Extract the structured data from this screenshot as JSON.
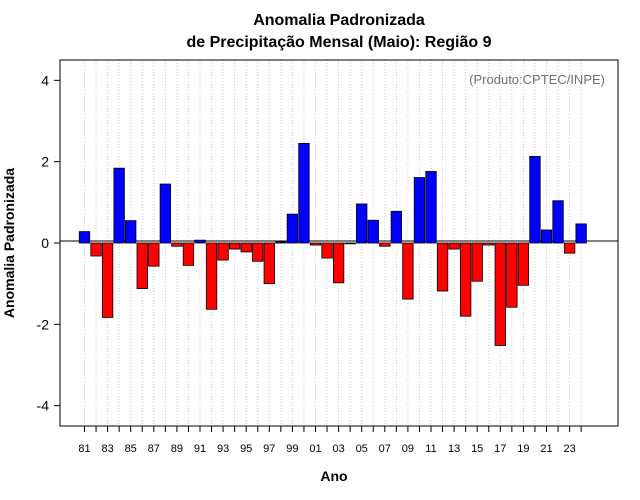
{
  "chart_data": {
    "type": "bar",
    "title_line1": "Anomalia Padronizada",
    "title_line2": "de Precipitação Mensal (Maio): Região 9",
    "xlabel": "Ano",
    "ylabel": "Anomalia Padronizada",
    "annotation": "(Produto:CPTEC/INPE)",
    "ylim": [
      -4.5,
      4.5
    ],
    "yticks": [
      "-4",
      "-2",
      "0",
      "2",
      "4"
    ],
    "xtick_labels": [
      "81",
      "83",
      "85",
      "87",
      "89",
      "91",
      "93",
      "95",
      "97",
      "99",
      "01",
      "03",
      "05",
      "07",
      "09",
      "11",
      "13",
      "15",
      "17",
      "19",
      "21",
      "23"
    ],
    "categories": [
      "1981",
      "1982",
      "1983",
      "1984",
      "1985",
      "1986",
      "1987",
      "1988",
      "1989",
      "1990",
      "1991",
      "1992",
      "1993",
      "1994",
      "1995",
      "1996",
      "1997",
      "1998",
      "1999",
      "2000",
      "2001",
      "2002",
      "2003",
      "2004",
      "2005",
      "2006",
      "2007",
      "2008",
      "2009",
      "2010",
      "2011",
      "2012",
      "2013",
      "2014",
      "2015",
      "2016",
      "2017",
      "2018",
      "2019",
      "2020",
      "2021",
      "2022",
      "2023",
      "2024"
    ],
    "values": [
      0.28,
      -0.32,
      -1.83,
      1.84,
      0.55,
      -1.12,
      -0.57,
      1.45,
      -0.08,
      -0.55,
      0.07,
      -1.63,
      -0.42,
      -0.15,
      -0.22,
      -0.45,
      -1.0,
      0.03,
      0.71,
      2.45,
      -0.05,
      -0.37,
      -0.98,
      0.0,
      0.96,
      0.56,
      -0.08,
      0.78,
      -1.38,
      1.61,
      1.76,
      -1.18,
      -0.15,
      -1.8,
      -0.94,
      -0.05,
      -2.52,
      -1.58,
      -1.04,
      2.13,
      0.32,
      1.04,
      -0.25,
      0.47
    ],
    "colors": {
      "positive": "#0000ff",
      "negative": "#ff0000",
      "outline": "#000000",
      "grid": "#cccccc"
    }
  }
}
